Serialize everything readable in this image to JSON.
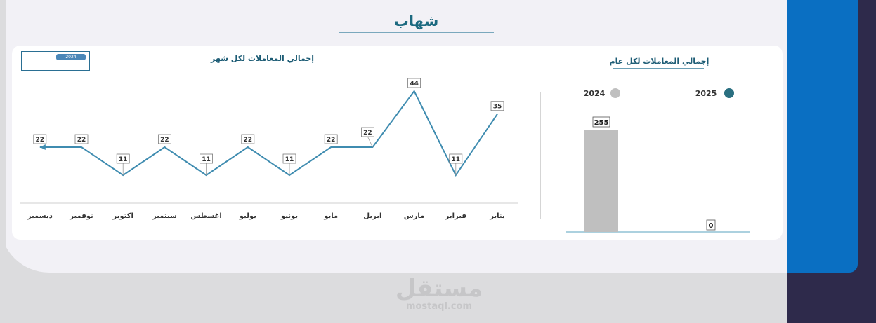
{
  "header": {
    "title": "شهاب"
  },
  "slicer": {
    "selected": "2024"
  },
  "monthly_chart_title": "إجمالي المعاملات لكل شهر",
  "yearly_chart_title": "إجمالي المعاملات لكل عام",
  "watermark": {
    "arabic": "مستقل",
    "latin": "mostaql.com"
  },
  "colors": {
    "line": "#3f8cb0",
    "bar": "#bfbfbf",
    "legend_2025": "#2a6f80",
    "legend_2024": "#bfbfbf",
    "accent": "#0a6fc2"
  },
  "chart_data": [
    {
      "type": "line",
      "title": "إجمالي المعاملات لكل شهر",
      "categories": [
        "يناير",
        "فبراير",
        "مارس",
        "ابريل",
        "مايو",
        "يونيو",
        "يوليو",
        "اغسطس",
        "سبتمبر",
        "اكتوبر",
        "نوفمبر",
        "ديسمبر"
      ],
      "values": [
        35,
        11,
        44,
        22,
        22,
        11,
        22,
        11,
        22,
        11,
        22,
        22
      ],
      "x_direction": "right-to-left",
      "grid": false
    },
    {
      "type": "bar",
      "title": "إجمالي المعاملات لكل عام",
      "categories": [
        "2024",
        "2025"
      ],
      "values": [
        255,
        0
      ],
      "legend": [
        "2025",
        "2024"
      ],
      "legend_position": "top",
      "grid": false
    }
  ]
}
